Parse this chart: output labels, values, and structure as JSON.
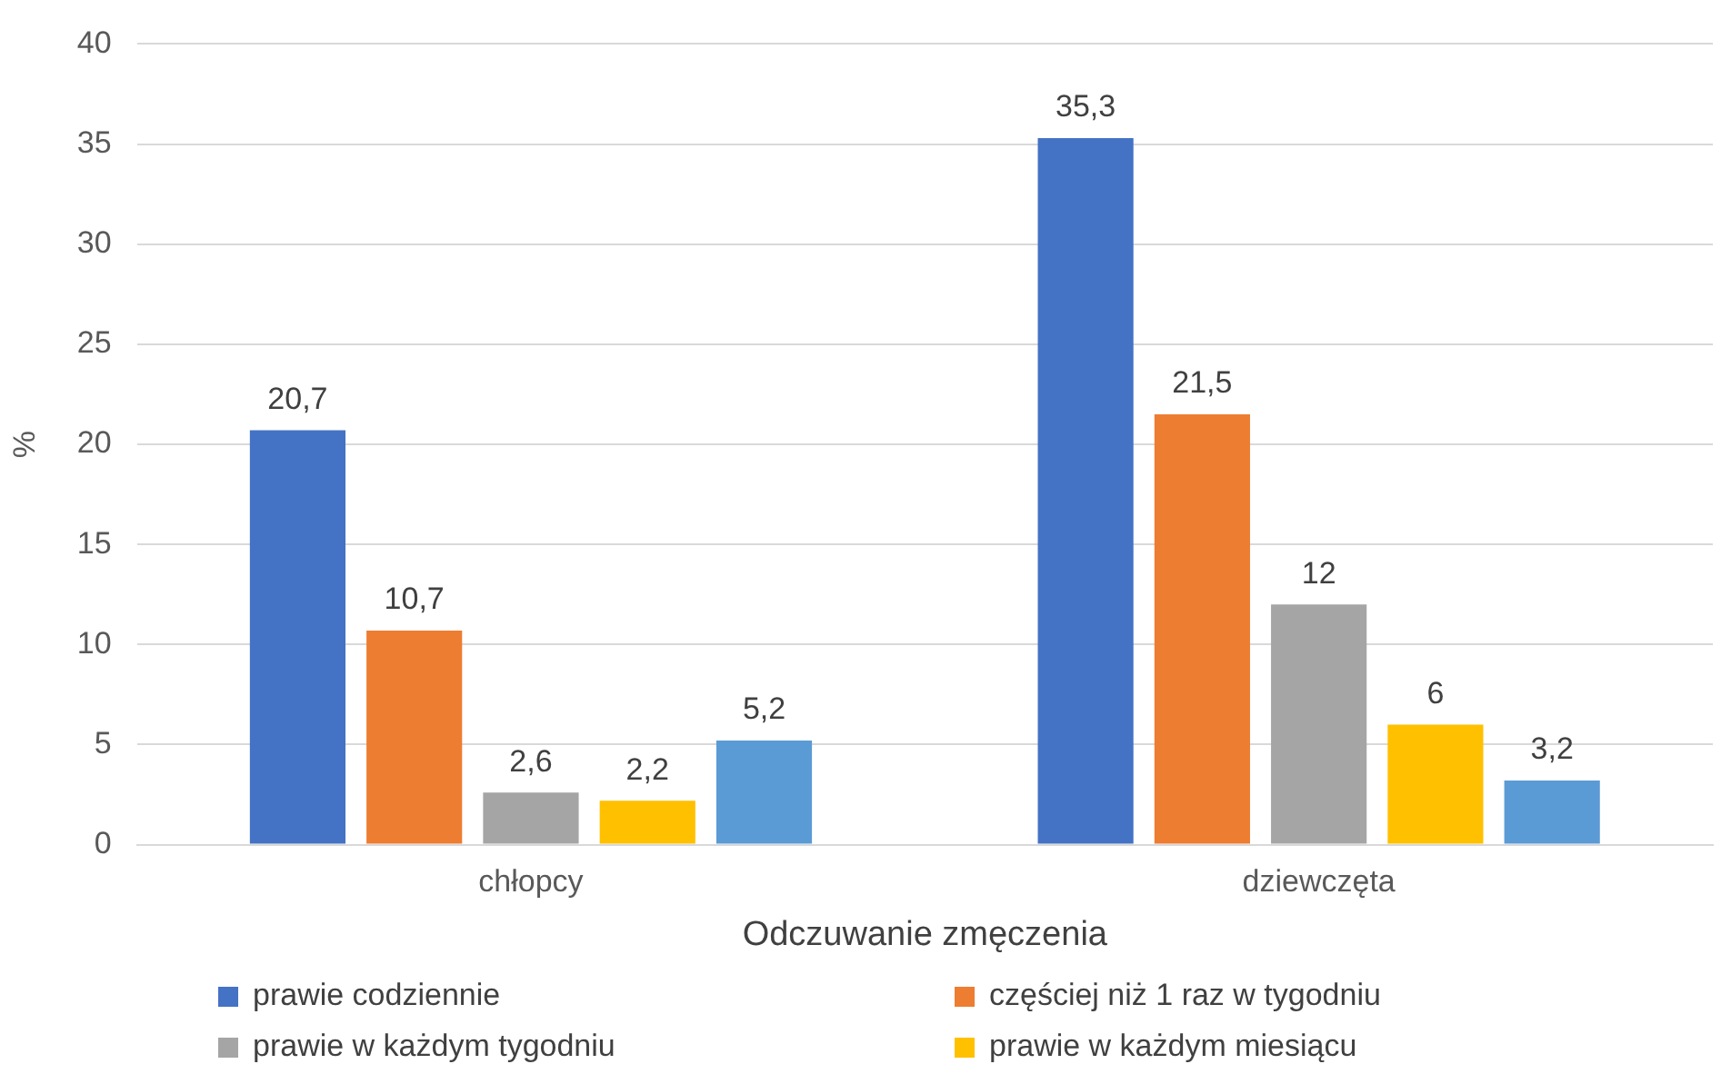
{
  "chart_data": {
    "type": "bar",
    "xlabel": "Odczuwanie zmęczenia",
    "ylabel": "%",
    "categories": [
      "chłopcy",
      "dziewczęta"
    ],
    "series": [
      {
        "name": "prawie codziennie",
        "color": "#4472c4",
        "values": [
          20.7,
          35.3
        ],
        "value_labels": [
          "20,7",
          "35,3"
        ]
      },
      {
        "name": "częściej niż 1 raz w tygodniu",
        "color": "#ed7d31",
        "values": [
          10.7,
          21.5
        ],
        "value_labels": [
          "10,7",
          "21,5"
        ]
      },
      {
        "name": "prawie w każdym tygodniu",
        "color": "#a5a5a5",
        "values": [
          2.6,
          12
        ],
        "value_labels": [
          "2,6",
          "12"
        ]
      },
      {
        "name": "prawie w każdym miesiącu",
        "color": "#ffc000",
        "values": [
          2.2,
          6
        ],
        "value_labels": [
          "2,2",
          "6"
        ]
      },
      {
        "color": "#5b9bd5",
        "values": [
          5.2,
          3.2
        ],
        "value_labels": [
          "5,2",
          "3,2"
        ]
      }
    ],
    "ylim": [
      0,
      40
    ],
    "yticks": [
      0,
      5,
      10,
      15,
      20,
      25,
      30,
      35,
      40
    ],
    "grid": "y",
    "legend": "bottom"
  }
}
